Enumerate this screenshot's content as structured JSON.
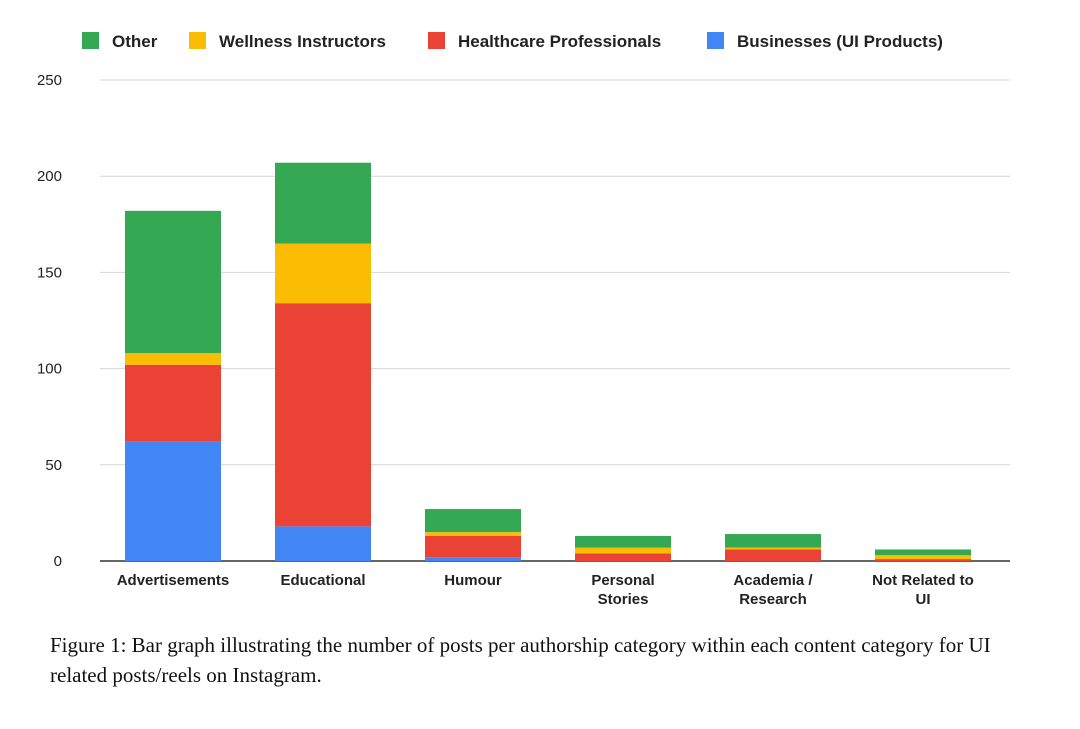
{
  "chart_data": {
    "type": "bar",
    "stacked": true,
    "categories": [
      "Advertisements",
      "Educational",
      "Humour",
      "Personal Stories",
      "Academia / Research",
      "Not Related to UI"
    ],
    "category_lines": [
      [
        "Advertisements"
      ],
      [
        "Educational"
      ],
      [
        "Humour"
      ],
      [
        "Personal",
        "Stories"
      ],
      [
        "Academia /",
        "Research"
      ],
      [
        "Not Related to",
        "UI"
      ]
    ],
    "series": [
      {
        "name": "Businesses (UI Products)",
        "color": "#4285F4",
        "values": [
          62,
          18,
          2,
          0,
          0,
          0
        ]
      },
      {
        "name": "Healthcare Professionals",
        "color": "#EA4335",
        "values": [
          40,
          116,
          11,
          4,
          6,
          1
        ]
      },
      {
        "name": "Wellness Instructors",
        "color": "#FBBC04",
        "values": [
          6,
          31,
          2,
          3,
          1,
          2
        ]
      },
      {
        "name": "Other",
        "color": "#34A853",
        "values": [
          74,
          42,
          12,
          6,
          7,
          3
        ]
      }
    ],
    "legend_order": [
      "Other",
      "Wellness Instructors",
      "Healthcare Professionals",
      "Businesses (UI Products)"
    ],
    "legend_position": "top",
    "ylim": [
      0,
      250
    ],
    "yticks": [
      0,
      50,
      100,
      150,
      200,
      250
    ],
    "grid": true
  },
  "caption": "Figure 1: Bar graph illustrating the number of posts per authorship category within each content category for UI related posts/reels on Instagram."
}
